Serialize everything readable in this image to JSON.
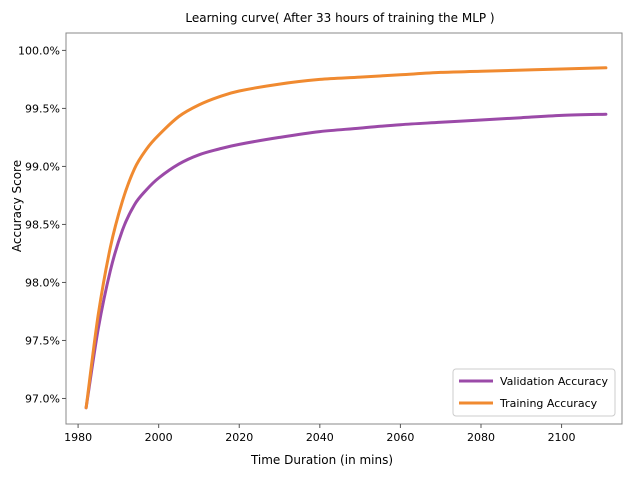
{
  "chart_data": {
    "type": "line",
    "title": "Learning curve( After 33 hours of training the MLP )",
    "xlabel": "Time Duration (in mins)",
    "ylabel": "Accuracy Score",
    "xlim": [
      1977,
      2115
    ],
    "ylim": [
      96.78,
      100.15
    ],
    "x_ticks": [
      1980,
      2000,
      2020,
      2040,
      2060,
      2080,
      2100
    ],
    "x_tick_labels": [
      "1980",
      "2000",
      "2020",
      "2040",
      "2060",
      "2080",
      "2100"
    ],
    "y_ticks": [
      97.0,
      97.5,
      98.0,
      98.5,
      99.0,
      99.5,
      100.0
    ],
    "y_tick_labels": [
      "97.0%",
      "97.5%",
      "98.0%",
      "98.5%",
      "99.0%",
      "99.5%",
      "100.0%"
    ],
    "grid": false,
    "legend_position": "lower-right",
    "series": [
      {
        "name": "Validation Accuracy",
        "color": "#9b4aa8",
        "x": [
          1982,
          1985,
          1988,
          1991,
          1994,
          1997,
          2000,
          2005,
          2010,
          2015,
          2020,
          2030,
          2040,
          2050,
          2060,
          2070,
          2080,
          2090,
          2100,
          2111
        ],
        "y": [
          96.92,
          97.6,
          98.1,
          98.45,
          98.67,
          98.8,
          98.9,
          99.02,
          99.1,
          99.15,
          99.19,
          99.25,
          99.3,
          99.33,
          99.36,
          99.38,
          99.4,
          99.42,
          99.44,
          99.45
        ]
      },
      {
        "name": "Training Accuracy",
        "color": "#f08a30",
        "x": [
          1982,
          1985,
          1988,
          1991,
          1994,
          1997,
          2000,
          2005,
          2010,
          2015,
          2020,
          2030,
          2040,
          2050,
          2060,
          2070,
          2080,
          2090,
          2100,
          2111
        ],
        "y": [
          96.92,
          97.72,
          98.3,
          98.7,
          98.98,
          99.15,
          99.27,
          99.43,
          99.53,
          99.6,
          99.65,
          99.71,
          99.75,
          99.77,
          99.79,
          99.81,
          99.82,
          99.83,
          99.84,
          99.85
        ]
      }
    ]
  }
}
